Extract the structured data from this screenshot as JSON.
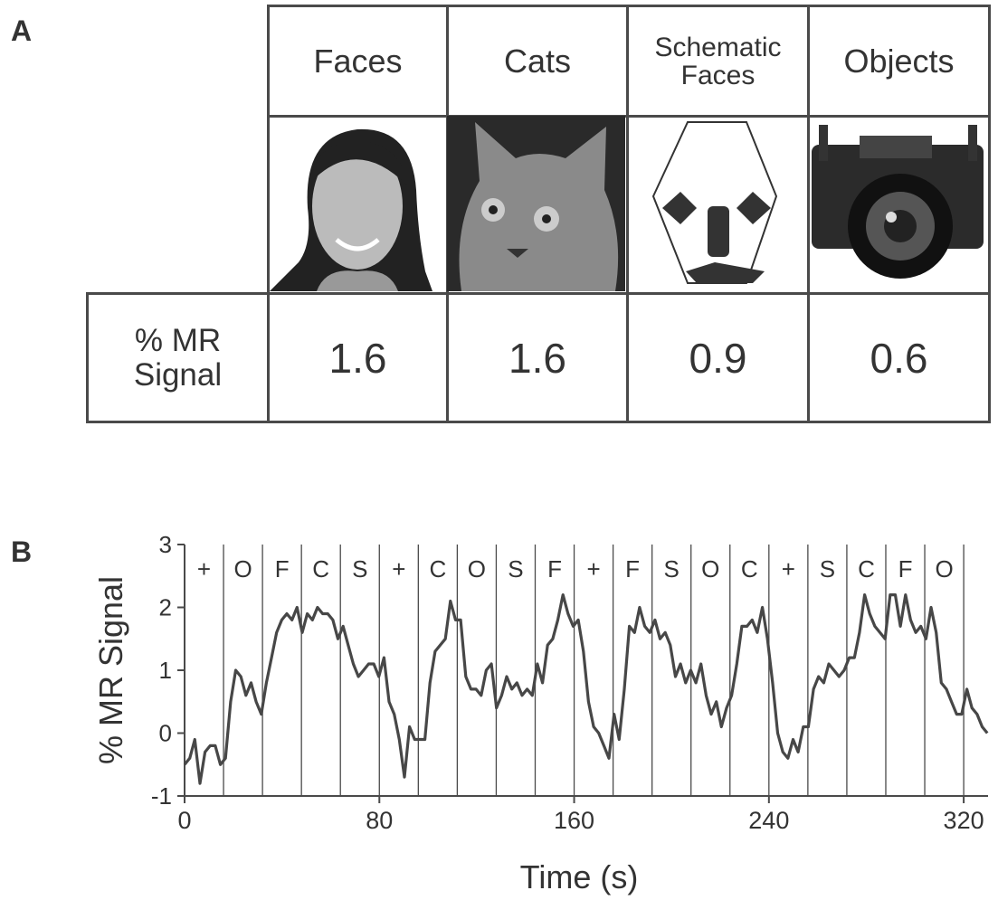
{
  "panel_a": {
    "label": "A",
    "table": {
      "columns": [
        "Faces",
        "Cats",
        "Schematic Faces",
        "Objects"
      ],
      "row_label": "% MR Signal",
      "values": [
        1.6,
        1.6,
        0.9,
        0.6
      ]
    }
  },
  "panel_b": {
    "label": "B"
  },
  "chart_data": {
    "type": "line",
    "x_label": "Time (s)",
    "y_label": "% MR Signal",
    "xlim": [
      0,
      330
    ],
    "xticks": [
      0,
      80,
      160,
      240,
      320
    ],
    "ylim": [
      -1,
      3
    ],
    "yticks": [
      -1,
      0,
      1,
      2,
      3
    ],
    "epoch_labels": [
      "+",
      "O",
      "F",
      "C",
      "S",
      "+",
      "C",
      "O",
      "S",
      "F",
      "+",
      "F",
      "S",
      "O",
      "C",
      "+",
      "S",
      "C",
      "F",
      "O"
    ],
    "epoch_edges": [
      0,
      16,
      32,
      48,
      64,
      80,
      96,
      112,
      128,
      144,
      160,
      176,
      192,
      208,
      224,
      240,
      256,
      272,
      288,
      304,
      320
    ],
    "series": [
      {
        "color": "#474747",
        "x": [
          0,
          2.1,
          4.2,
          6.3,
          8.4,
          10.5,
          12.6,
          14.7,
          16.8,
          18.9,
          21,
          23.1,
          25.2,
          27.3,
          29.4,
          31.5,
          33.6,
          35.7,
          37.8,
          39.9,
          42,
          44.1,
          46.2,
          48.3,
          50.4,
          52.5,
          54.6,
          56.7,
          58.8,
          60.9,
          63,
          65.1,
          67.2,
          69.3,
          71.4,
          73.5,
          75.6,
          77.7,
          79.8,
          81.9,
          84,
          86.1,
          88.2,
          90.3,
          92.4,
          94.5,
          96.6,
          98.7,
          100.8,
          102.9,
          105,
          107.1,
          109.2,
          111.3,
          113.4,
          115.5,
          117.6,
          119.7,
          121.8,
          123.9,
          126,
          128.1,
          130.2,
          132.3,
          134.4,
          136.5,
          138.6,
          140.7,
          142.8,
          144.9,
          147,
          149.1,
          151.2,
          153.3,
          155.4,
          157.5,
          159.6,
          161.7,
          163.8,
          165.9,
          168,
          170.1,
          172.2,
          174.3,
          176.4,
          178.5,
          180.6,
          182.7,
          184.8,
          186.9,
          189,
          191.1,
          193.2,
          195.3,
          197.4,
          199.5,
          201.6,
          203.7,
          205.8,
          207.9,
          210,
          212.1,
          214.2,
          216.3,
          218.4,
          220.5,
          222.6,
          224.7,
          226.8,
          228.9,
          231,
          233.1,
          235.2,
          237.3,
          239.4,
          241.5,
          243.6,
          245.7,
          247.8,
          249.9,
          252,
          254.1,
          256.2,
          258.3,
          260.4,
          262.5,
          264.6,
          266.7,
          268.8,
          270.9,
          273,
          275.1,
          277.2,
          279.3,
          281.4,
          283.5,
          285.6,
          287.7,
          289.8,
          291.9,
          294,
          296.1,
          298.2,
          300.3,
          302.4,
          304.5,
          306.6,
          308.7,
          310.8,
          312.9,
          315,
          317.1,
          319.2,
          321.3,
          323.4,
          325.5,
          327.6,
          329.7
        ],
        "values": [
          -0.5,
          -0.4,
          -0.1,
          -0.8,
          -0.3,
          -0.2,
          -0.2,
          -0.5,
          -0.4,
          0.5,
          1.0,
          0.9,
          0.6,
          0.8,
          0.5,
          0.3,
          0.8,
          1.2,
          1.6,
          1.8,
          1.9,
          1.8,
          2.0,
          1.6,
          1.9,
          1.8,
          2.0,
          1.9,
          1.9,
          1.8,
          1.5,
          1.7,
          1.4,
          1.1,
          0.9,
          1.0,
          1.1,
          1.1,
          0.9,
          1.2,
          0.5,
          0.3,
          -0.1,
          -0.7,
          0.1,
          -0.1,
          -0.1,
          -0.1,
          0.8,
          1.3,
          1.4,
          1.5,
          2.1,
          1.8,
          1.8,
          0.9,
          0.7,
          0.7,
          0.6,
          1.0,
          1.1,
          0.4,
          0.6,
          0.9,
          0.7,
          0.8,
          0.6,
          0.7,
          0.6,
          1.1,
          0.8,
          1.4,
          1.5,
          1.8,
          2.2,
          1.9,
          1.7,
          1.8,
          1.3,
          0.5,
          0.1,
          0.0,
          -0.2,
          -0.4,
          0.3,
          -0.1,
          0.7,
          1.7,
          1.6,
          2.0,
          1.7,
          1.6,
          1.8,
          1.5,
          1.6,
          1.4,
          0.9,
          1.1,
          0.8,
          1.0,
          0.8,
          1.1,
          0.6,
          0.3,
          0.5,
          0.1,
          0.4,
          0.6,
          1.1,
          1.7,
          1.7,
          1.8,
          1.6,
          2.0,
          1.5,
          0.8,
          0.0,
          -0.3,
          -0.4,
          -0.1,
          -0.3,
          0.1,
          0.1,
          0.7,
          0.9,
          0.8,
          1.1,
          1.0,
          0.9,
          1.0,
          1.2,
          1.2,
          1.6,
          2.2,
          1.9,
          1.7,
          1.6,
          1.5,
          2.2,
          2.2,
          1.7,
          2.2,
          1.8,
          1.6,
          1.7,
          1.5,
          2.0,
          1.6,
          0.8,
          0.7,
          0.5,
          0.3,
          0.3,
          0.7,
          0.4,
          0.3,
          0.1,
          0.0
        ]
      }
    ]
  }
}
